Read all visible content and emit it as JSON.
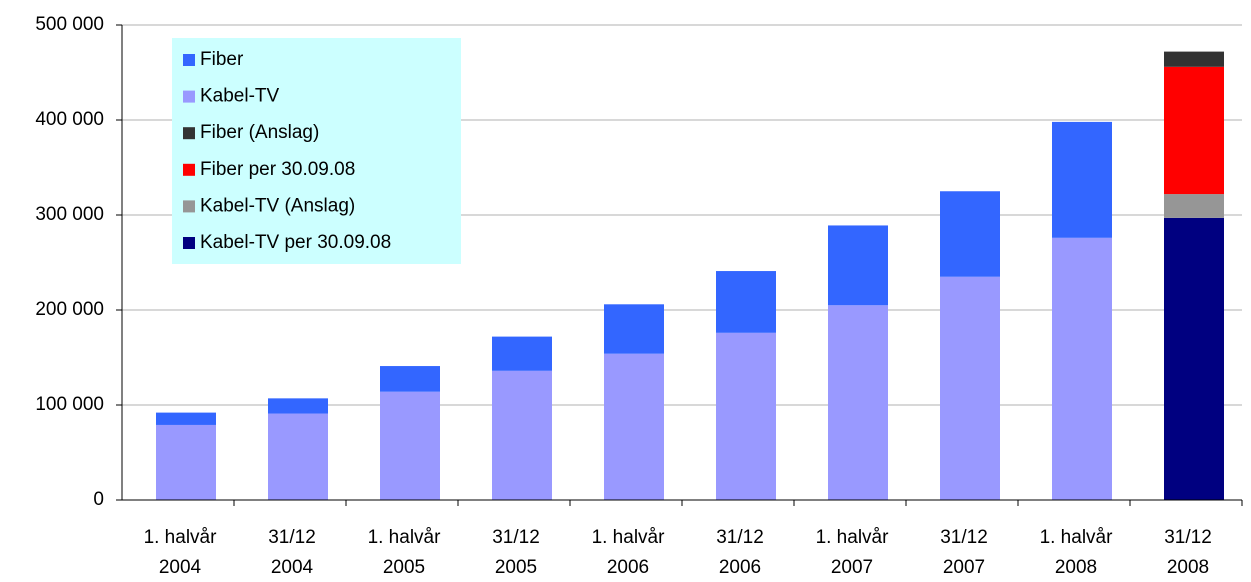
{
  "chart_data": {
    "type": "stacked_bar",
    "categories": [
      [
        "1. halvår",
        "2004"
      ],
      [
        "31/12",
        "2004"
      ],
      [
        "1. halvår",
        "2005"
      ],
      [
        "31/12",
        "2005"
      ],
      [
        "1. halvår",
        "2006"
      ],
      [
        "31/12",
        "2006"
      ],
      [
        "1. halvår",
        "2007"
      ],
      [
        "31/12",
        "2007"
      ],
      [
        "1. halvår",
        "2008"
      ],
      [
        "31/12",
        "2008"
      ]
    ],
    "series": [
      {
        "name": "Fiber",
        "color": "#3366ff",
        "values": [
          13000,
          16000,
          27000,
          36000,
          52000,
          65000,
          84000,
          90000,
          122000,
          null
        ]
      },
      {
        "name": "Kabel-TV",
        "color": "#9999ff",
        "values": [
          79000,
          91000,
          114000,
          136000,
          154000,
          176000,
          205000,
          235000,
          276000,
          null
        ]
      },
      {
        "name": "Fiber (Anslag)",
        "color": "#333333",
        "values": [
          null,
          null,
          null,
          null,
          null,
          null,
          null,
          null,
          null,
          16000
        ]
      },
      {
        "name": "Fiber per 30.09.08",
        "color": "#ff0000",
        "values": [
          null,
          null,
          null,
          null,
          null,
          null,
          null,
          null,
          null,
          134000
        ]
      },
      {
        "name": "Kabel-TV (Anslag)",
        "color": "#969696",
        "values": [
          null,
          null,
          null,
          null,
          null,
          null,
          null,
          null,
          null,
          25000
        ]
      },
      {
        "name": "Kabel-TV per 30.09.08",
        "color": "#000080",
        "values": [
          null,
          null,
          null,
          null,
          null,
          null,
          null,
          null,
          null,
          297000
        ]
      }
    ],
    "ylim": [
      0,
      500000
    ],
    "yticks": [
      0,
      {
        "value": 100000,
        "label": "100 000"
      },
      {
        "value": 200000,
        "label": "200 000"
      },
      {
        "value": 300000,
        "label": "300 000"
      },
      {
        "value": 400000,
        "label": "400 000"
      },
      {
        "value": 500000,
        "label": "500 000"
      }
    ],
    "grid": true,
    "legend": "upper left"
  }
}
